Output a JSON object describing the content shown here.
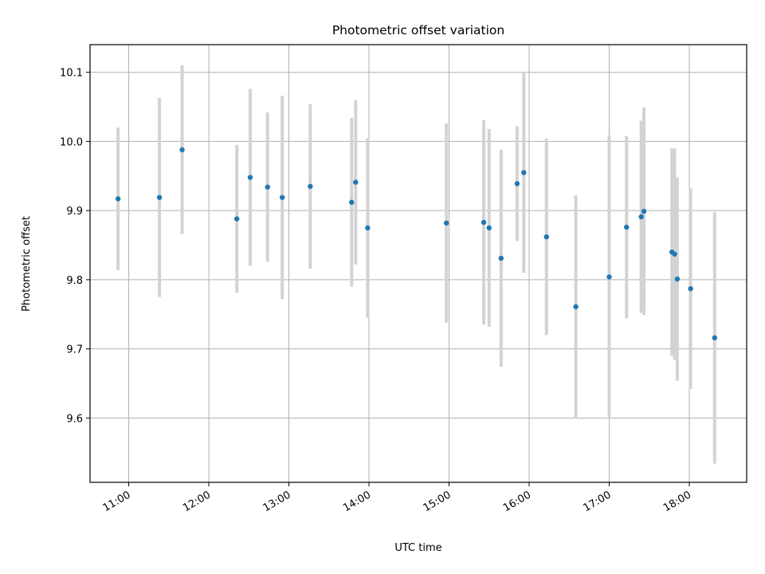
{
  "chart_data": {
    "type": "scatter",
    "title": "Photometric offset variation",
    "xlabel": "UTC time",
    "ylabel": "Photometric offset",
    "x_ticks": [
      "11:00",
      "12:00",
      "13:00",
      "14:00",
      "15:00",
      "16:00",
      "17:00",
      "18:00"
    ],
    "y_ticks": [
      "9.6",
      "9.7",
      "9.8",
      "9.9",
      "10.0",
      "10.1"
    ],
    "xlim": [
      "10:31",
      "18:43"
    ],
    "ylim": [
      9.507,
      10.14
    ],
    "grid": true,
    "legend": "none",
    "colors": {
      "point": "#1f77b4",
      "errorbar": "#d3d3d3",
      "grid": "#b0b0b0"
    },
    "series": [
      {
        "points": [
          {
            "t": "10:52",
            "y": 9.917,
            "err": 0.103
          },
          {
            "t": "11:23",
            "y": 9.919,
            "err": 0.144
          },
          {
            "t": "11:40",
            "y": 9.988,
            "err": 0.122
          },
          {
            "t": "12:21",
            "y": 9.888,
            "err": 0.107
          },
          {
            "t": "12:31",
            "y": 9.948,
            "err": 0.128
          },
          {
            "t": "12:44",
            "y": 9.934,
            "err": 0.108
          },
          {
            "t": "12:55",
            "y": 9.919,
            "err": 0.147
          },
          {
            "t": "13:16",
            "y": 9.935,
            "err": 0.119
          },
          {
            "t": "13:47",
            "y": 9.912,
            "err": 0.122
          },
          {
            "t": "13:50",
            "y": 9.941,
            "err": 0.119
          },
          {
            "t": "13:59",
            "y": 9.875,
            "err": 0.13
          },
          {
            "t": "14:58",
            "y": 9.882,
            "err": 0.144
          },
          {
            "t": "15:26",
            "y": 9.883,
            "err": 0.148
          },
          {
            "t": "15:30",
            "y": 9.875,
            "err": 0.143
          },
          {
            "t": "15:39",
            "y": 9.831,
            "err": 0.157
          },
          {
            "t": "15:51",
            "y": 9.939,
            "err": 0.083
          },
          {
            "t": "15:56",
            "y": 9.955,
            "err": 0.145
          },
          {
            "t": "16:13",
            "y": 9.862,
            "err": 0.142
          },
          {
            "t": "16:35",
            "y": 9.761,
            "err": 0.161
          },
          {
            "t": "17:00",
            "y": 9.804,
            "err": 0.205
          },
          {
            "t": "17:13",
            "y": 9.876,
            "err": 0.132
          },
          {
            "t": "17:24",
            "y": 9.891,
            "err": 0.139
          },
          {
            "t": "17:26",
            "y": 9.899,
            "err": 0.15
          },
          {
            "t": "17:47",
            "y": 9.84,
            "err": 0.15
          },
          {
            "t": "17:49",
            "y": 9.837,
            "err": 0.153
          },
          {
            "t": "17:51",
            "y": 9.801,
            "err": 0.147
          },
          {
            "t": "18:01",
            "y": 9.787,
            "err": 0.145
          },
          {
            "t": "18:19",
            "y": 9.716,
            "err": 0.182
          }
        ]
      }
    ]
  }
}
